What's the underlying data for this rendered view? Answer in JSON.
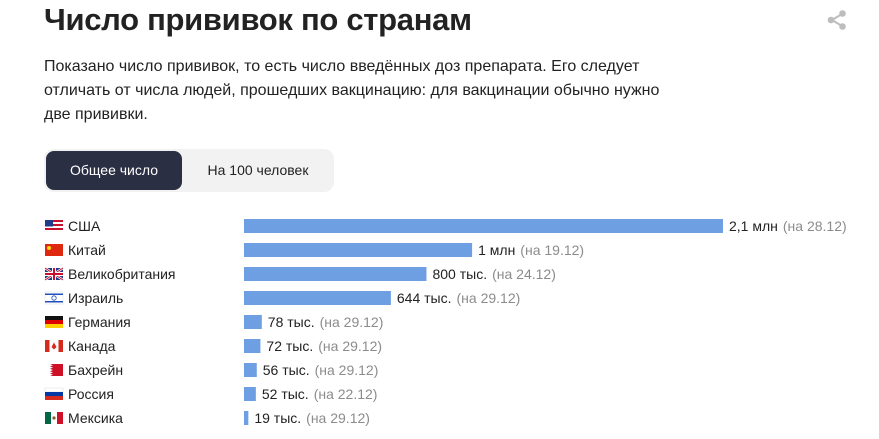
{
  "header": {
    "title": "Число прививок по странам",
    "subtitle": "Показано число прививок, то есть число введённых доз препарата. Его следует отличать от числа людей, прошедших вакцинацию: для вакцинации обычно нужно две прививки.",
    "share_icon": "share-icon"
  },
  "tabs": [
    {
      "label": "Общее число",
      "active": true
    },
    {
      "label": "На 100 человек",
      "active": false
    }
  ],
  "colors": {
    "bar": "#6e9fe3",
    "active_tab": "#2a2f44",
    "muted_text": "#8c8c8c"
  },
  "chart_data": {
    "type": "bar",
    "orientation": "horizontal",
    "unit": "doses",
    "categories": [
      "США",
      "Китай",
      "Великобритания",
      "Израиль",
      "Германия",
      "Канада",
      "Бахрейн",
      "Россия",
      "Мексика"
    ],
    "flags": [
      "us",
      "cn",
      "gb",
      "il",
      "de",
      "ca",
      "bh",
      "ru",
      "mx"
    ],
    "values": [
      2100000,
      1000000,
      800000,
      644000,
      78000,
      72000,
      56000,
      52000,
      19000
    ],
    "value_labels": [
      "2,1 млн",
      "1 млн",
      "800 тыс.",
      "644 тыс.",
      "78 тыс.",
      "72 тыс.",
      "56 тыс.",
      "52 тыс.",
      "19 тыс."
    ],
    "date_labels": [
      "(на 28.12)",
      "(на 19.12)",
      "(на 24.12)",
      "(на 29.12)",
      "(на 29.12)",
      "(на 29.12)",
      "(на 29.12)",
      "(на 22.12)",
      "(на 29.12)"
    ],
    "xlim": [
      0,
      2100000
    ],
    "grid": false,
    "legend": "none"
  }
}
